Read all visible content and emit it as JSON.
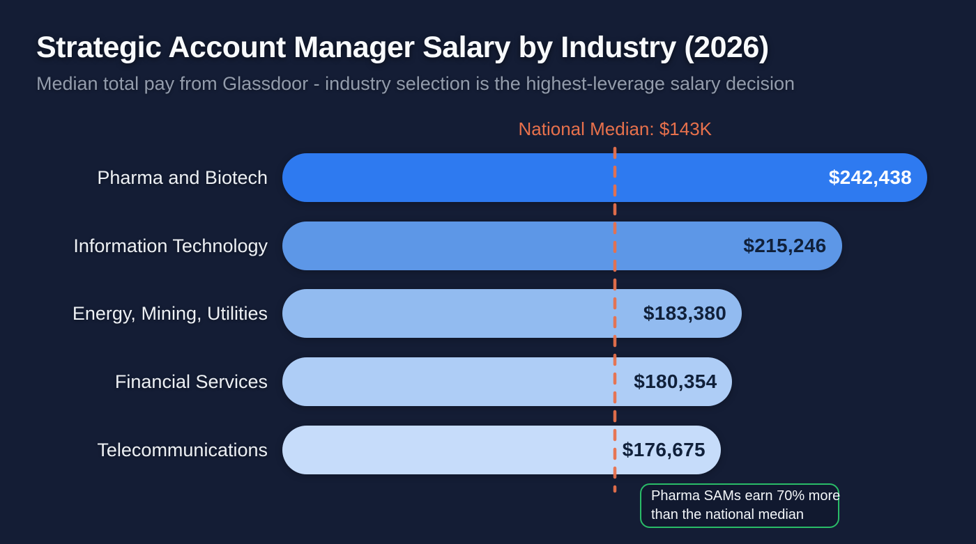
{
  "header": {
    "title": "Strategic Account Manager Salary by Industry (2026)",
    "subtitle": "Median total pay from Glassdoor - industry selection is the highest-leverage salary decision"
  },
  "median": {
    "label": "National Median: $143K",
    "value": 143000,
    "color": "#e8714c"
  },
  "annotation": {
    "line1": "Pharma SAMs earn 70% more",
    "line2": "than the national median",
    "border_color": "#2abc68",
    "text_color": "#f3f6f9"
  },
  "colors": {
    "background": "#141d35",
    "title_text": "#f8fafc",
    "subtitle_text": "#939cac",
    "category_label_text": "#edf0f4",
    "median_line": "#e8714c",
    "annotation_border": "#2abc68"
  },
  "chart_data": {
    "type": "bar",
    "orientation": "horizontal",
    "title": "Strategic Account Manager Salary by Industry (2026)",
    "subtitle": "Median total pay from Glassdoor - industry selection is the highest-leverage salary decision",
    "categories": [
      "Pharma and Biotech",
      "Information Technology",
      "Energy, Mining, Utilities",
      "Financial Services",
      "Telecommunications"
    ],
    "values": [
      242438,
      215246,
      183380,
      180354,
      176675
    ],
    "value_labels": [
      "$242,438",
      "$215,246",
      "$183,380",
      "$180,354",
      "$176,675"
    ],
    "bar_colors": [
      "#2e7af0",
      "#5d97e7",
      "#92bbf0",
      "#aecdf6",
      "#c6dcfa"
    ],
    "value_text_colors": [
      "#ffffff",
      "#10203a",
      "#10203a",
      "#10203a",
      "#10203a"
    ],
    "reference_line": {
      "label": "National Median: $143K",
      "value": 143000,
      "style": "dashed",
      "color": "#e8714c"
    },
    "xlim": [
      37000,
      242438
    ],
    "grid": false,
    "legend": false,
    "annotations": [
      "Pharma SAMs earn 70% more than the national median"
    ]
  }
}
